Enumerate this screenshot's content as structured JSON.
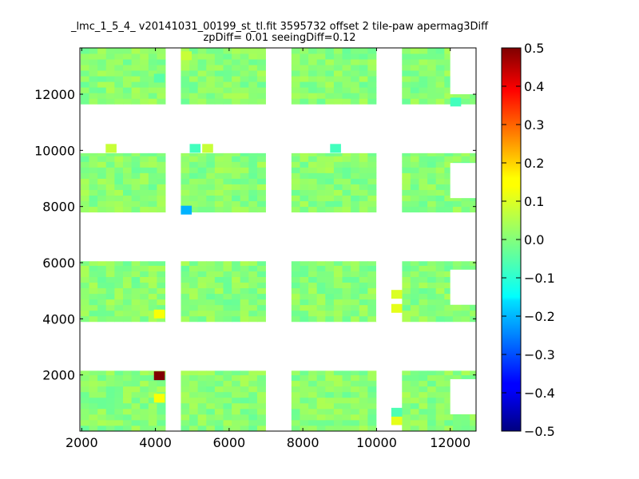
{
  "chart_data": {
    "type": "heatmap",
    "title": "_lmc_1_5_4_ v20141031_00199_st_tl.fit 3595732 offset 2 tile-paw apermag3Diff",
    "subtitle": "zpDiff= 0.01 seeingDiff=0.12",
    "xlim": [
      1950,
      12700
    ],
    "ylim": [
      0,
      13650
    ],
    "x_ticks": [
      2000,
      4000,
      6000,
      8000,
      10000,
      12000
    ],
    "y_ticks": [
      2000,
      4000,
      6000,
      8000,
      10000,
      12000
    ],
    "colorbar": {
      "colormap": "jet",
      "range": [
        -0.5,
        0.5
      ],
      "ticks": [
        "0.5",
        "0.4",
        "0.3",
        "0.2",
        "0.1",
        "0.0",
        "−0.1",
        "−0.2",
        "−0.3",
        "−0.4",
        "−0.5"
      ]
    },
    "cell_size": [
      230,
      200
    ],
    "column_blocks": [
      {
        "x_start": 1970,
        "x_end": 4270
      },
      {
        "x_start": 4690,
        "x_end": 6990
      },
      {
        "x_start": 7690,
        "x_end": 9990
      },
      {
        "x_start": 10690,
        "x_end": 12690
      }
    ],
    "row_blocks": [
      {
        "y_start": 0,
        "y_end": 2150
      },
      {
        "y_start": 3900,
        "y_end": 6050
      },
      {
        "y_start": 7800,
        "y_end": 9900
      },
      {
        "y_start": 11650,
        "y_end": 13650
      }
    ],
    "base_value": 0.01,
    "special_cells": [
      {
        "x": 3960,
        "y": 1900,
        "value": 0.5
      },
      {
        "x": 3960,
        "y": 1100,
        "value": 0.12
      },
      {
        "x": 3960,
        "y": 4100,
        "value": 0.12
      },
      {
        "x": 10400,
        "y": 4300,
        "value": 0.1
      },
      {
        "x": 10400,
        "y": 4800,
        "value": 0.09
      },
      {
        "x": 10400,
        "y": 300,
        "value": 0.1
      },
      {
        "x": 10400,
        "y": 600,
        "value": -0.05
      },
      {
        "x": 4690,
        "y": 7800,
        "value": -0.2
      },
      {
        "x": 2650,
        "y": 10000,
        "value": 0.07
      },
      {
        "x": 4930,
        "y": 10000,
        "value": -0.06
      },
      {
        "x": 5270,
        "y": 10000,
        "value": 0.07
      },
      {
        "x": 8740,
        "y": 10000,
        "value": -0.06
      },
      {
        "x": 12000,
        "y": 11650,
        "value": -0.06
      },
      {
        "x": 4690,
        "y": 13300,
        "value": 0.07
      },
      {
        "x": 3960,
        "y": 12500,
        "value": -0.04
      }
    ],
    "empty_regions": [
      {
        "x": 4270,
        "y": 3900,
        "w": 420,
        "h": 2150
      },
      {
        "x": 9990,
        "y": 3900,
        "w": 700,
        "h": 2150
      },
      {
        "x": 12000,
        "y": 8300,
        "w": 690,
        "h": 1250
      },
      {
        "x": 12000,
        "y": 4500,
        "w": 690,
        "h": 1250
      },
      {
        "x": 12000,
        "y": 600,
        "w": 690,
        "h": 1250
      },
      {
        "x": 12000,
        "y": 12000,
        "w": 690,
        "h": 1650
      }
    ]
  }
}
